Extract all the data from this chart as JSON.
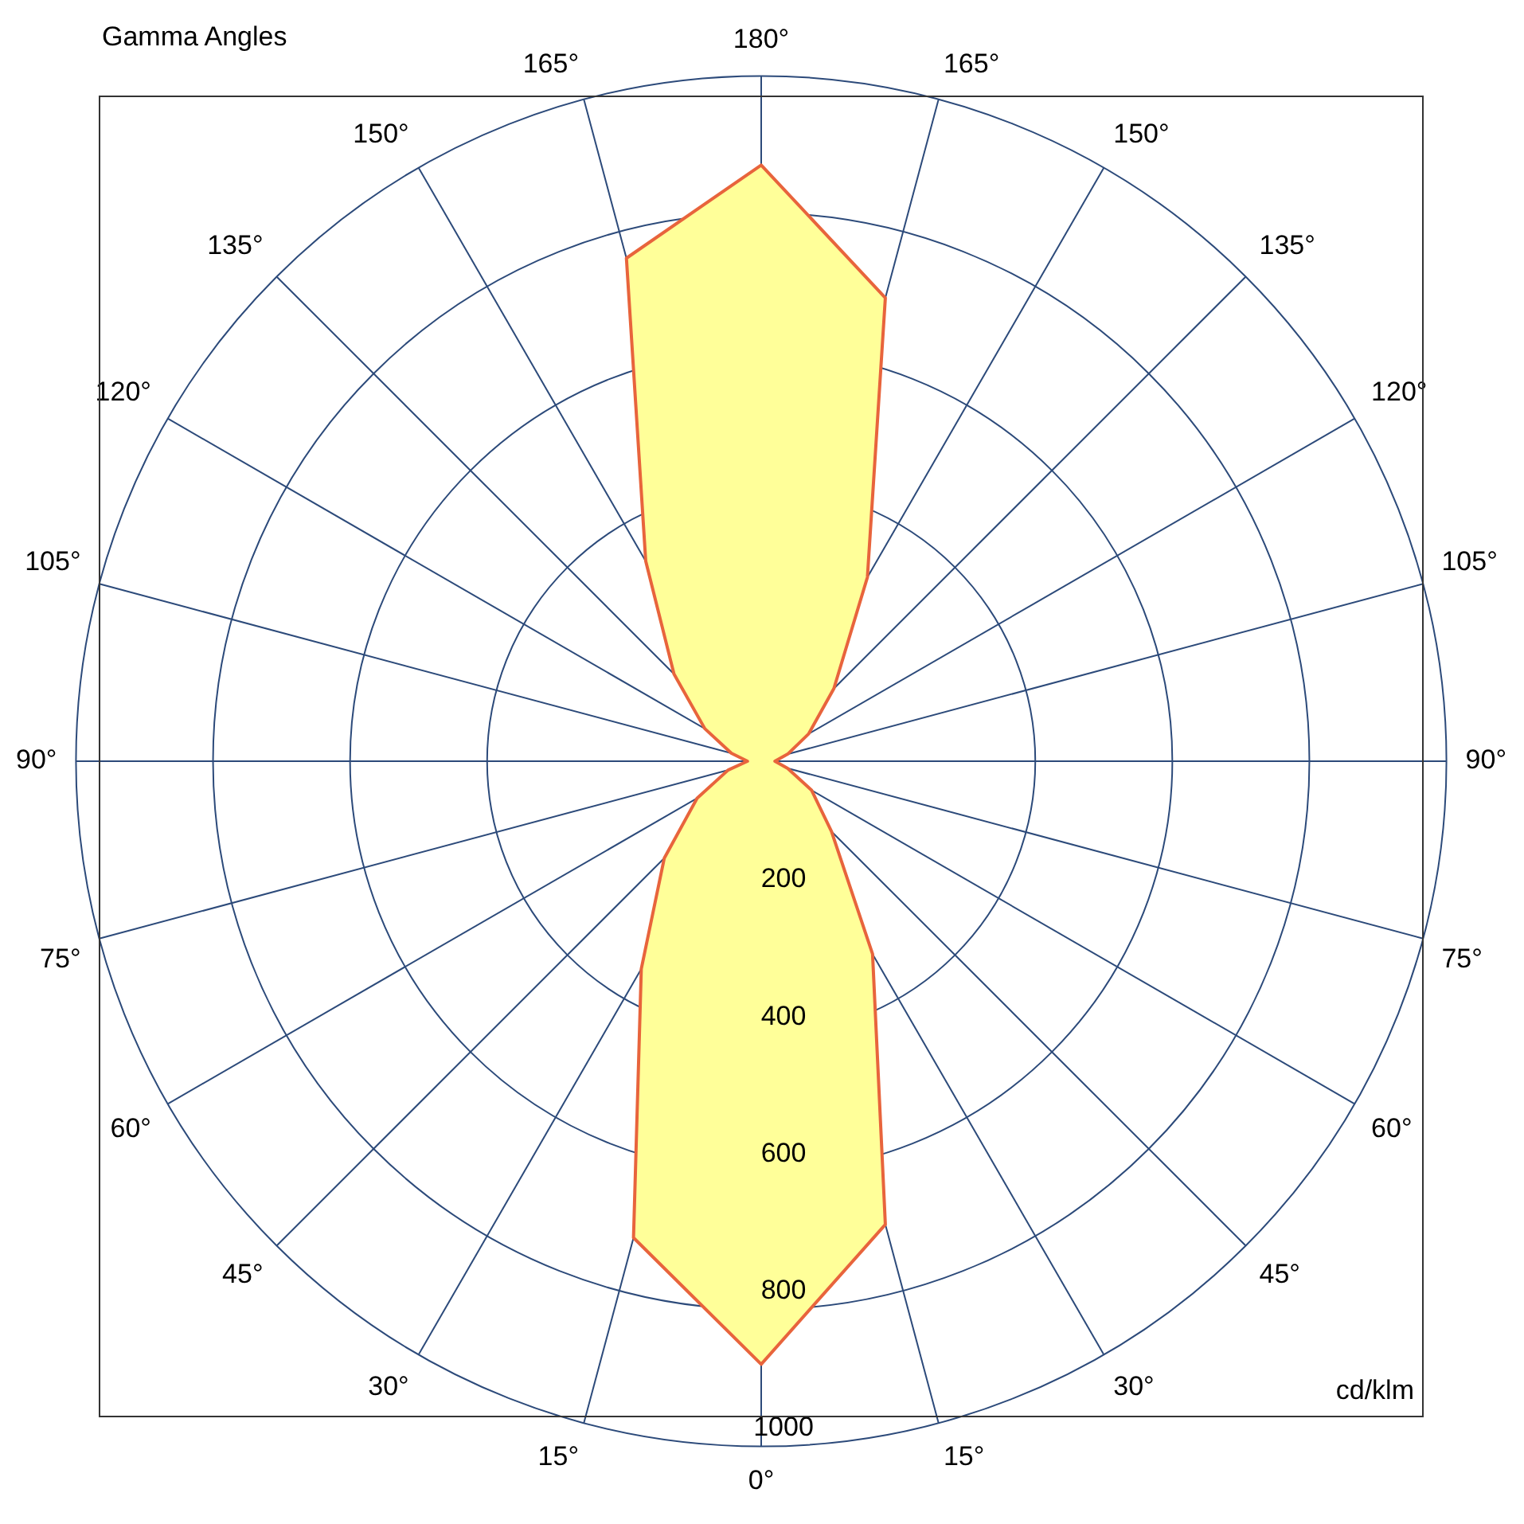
{
  "chart_data": {
    "type": "radar",
    "title": "Gamma Angles",
    "ylabel": "cd/klm",
    "categories": [
      "180°",
      "165°",
      "150°",
      "135°",
      "120°",
      "105°",
      "90°",
      "75°",
      "60°",
      "45°",
      "30°",
      "15°",
      "0°",
      "15°",
      "30°",
      "45°",
      "60°",
      "75°",
      "90°",
      "105°",
      "120°",
      "135°",
      "150°",
      "165°"
    ],
    "series": [
      {
        "color": "#ffff99",
        "values": [
          870,
          700,
          310,
          150,
          80,
          40,
          20,
          40,
          85,
          145,
          325,
          700,
          880,
          720,
          350,
          200,
          108,
          50,
          20,
          45,
          95,
          180,
          337,
          760
        ]
      }
    ],
    "ylim": [
      0,
      1000
    ],
    "yticks": [
      200,
      400,
      600,
      800,
      1000
    ],
    "grid": true,
    "legend": false,
    "marker": "none",
    "line_style": "solid"
  }
}
